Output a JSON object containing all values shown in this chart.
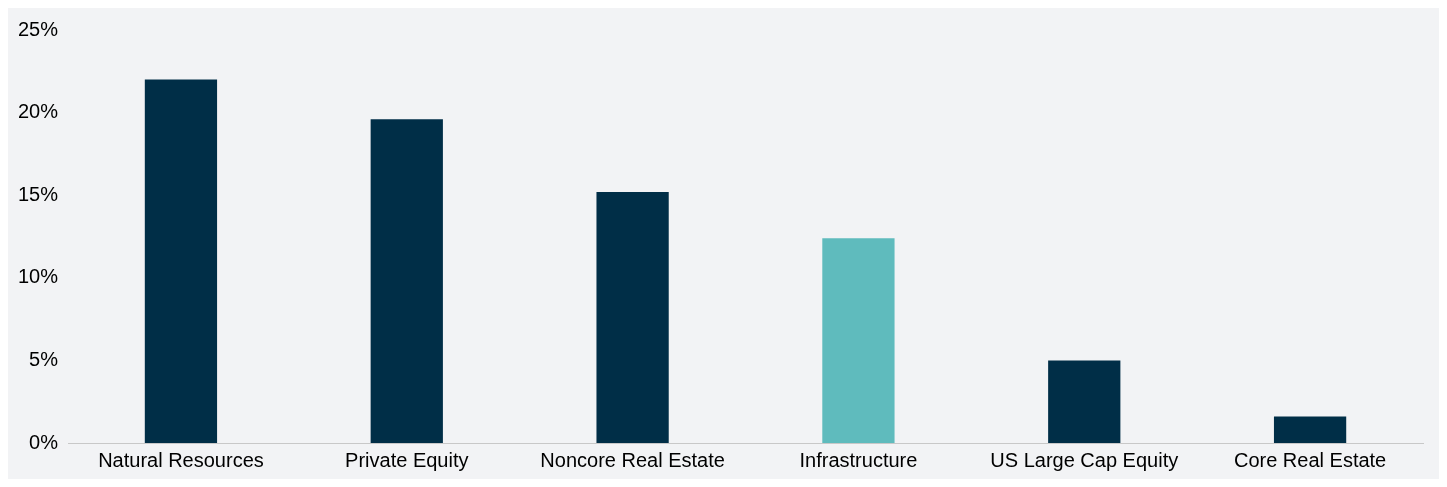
{
  "chart_data": {
    "type": "bar",
    "categories": [
      "Natural Resources",
      "Private Equity",
      "Noncore Real Estate",
      "Infrastructure",
      "US Large Cap Equity",
      "Core Real Estate"
    ],
    "values": [
      22.0,
      19.6,
      15.2,
      12.4,
      5.0,
      1.6
    ],
    "colors": [
      "#002e47",
      "#002e47",
      "#002e47",
      "#5fbbbd",
      "#002e47",
      "#002e47"
    ],
    "ylim": [
      0,
      25
    ],
    "yticks": [
      {
        "value": 0,
        "label": "0%"
      },
      {
        "value": 5,
        "label": "5%"
      },
      {
        "value": 10,
        "label": "10%"
      },
      {
        "value": 15,
        "label": "15%"
      },
      {
        "value": 20,
        "label": "20%"
      },
      {
        "value": 25,
        "label": "25%"
      }
    ],
    "grid": false,
    "legend": false
  }
}
